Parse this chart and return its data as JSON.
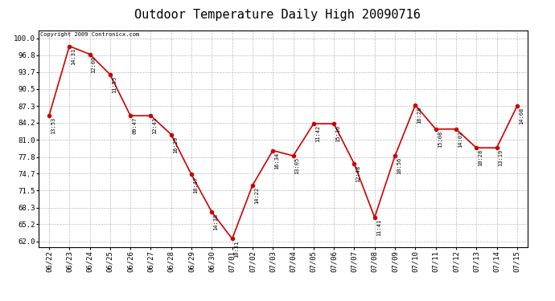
{
  "title": "Outdoor Temperature Daily High 20090716",
  "copyright": "Copyright 2009 Contronicx.com",
  "dates": [
    "06/22",
    "06/23",
    "06/24",
    "06/25",
    "06/26",
    "06/27",
    "06/28",
    "06/29",
    "06/30",
    "07/01",
    "07/02",
    "07/03",
    "07/04",
    "07/05",
    "07/06",
    "07/07",
    "07/08",
    "07/09",
    "07/10",
    "07/11",
    "07/12",
    "07/13",
    "07/14",
    "07/15"
  ],
  "values": [
    85.5,
    98.5,
    97.0,
    93.2,
    85.5,
    85.5,
    82.0,
    74.5,
    67.5,
    62.5,
    72.5,
    79.0,
    78.0,
    84.0,
    84.0,
    76.5,
    66.5,
    78.0,
    87.5,
    83.0,
    83.0,
    79.5,
    79.5,
    87.3
  ],
  "time_labels": [
    "13:53",
    "14:31",
    "12:00",
    "11:55",
    "09:47",
    "12:41",
    "16:29",
    "10:47",
    "14:38",
    "10:31",
    "14:22",
    "16:34",
    "13:05",
    "11:42",
    "15:36",
    "12:48",
    "11:41",
    "10:56",
    "16:28",
    "15:08",
    "14:02",
    "10:28",
    "13:19",
    "14:08"
  ],
  "line_color": "#cc0000",
  "marker_color": "#cc0000",
  "bg_color": "#ffffff",
  "grid_color": "#bbbbbb",
  "yticks": [
    62.0,
    65.2,
    68.3,
    71.5,
    74.7,
    77.8,
    81.0,
    84.2,
    87.3,
    90.5,
    93.7,
    96.8,
    100.0
  ],
  "ylim": [
    61.0,
    101.5
  ],
  "title_fontsize": 11,
  "label_fontsize": 6,
  "tick_fontsize": 6.5
}
